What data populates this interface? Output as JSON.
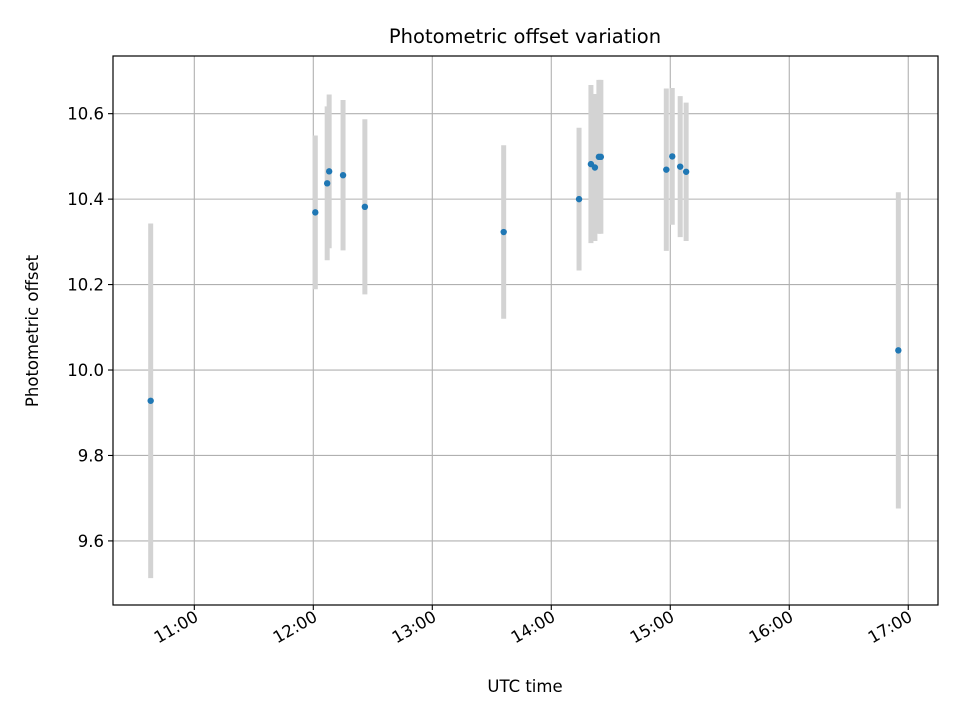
{
  "colors": {
    "background": "#ffffff",
    "grid": "#b0b0b0",
    "errorbar": "#d3d3d3",
    "marker": "#1f77b4",
    "axes": "#000000"
  },
  "chart_data": {
    "type": "scatter",
    "title": "Photometric offset variation",
    "xlabel": "UTC time",
    "ylabel": "Photometric offset",
    "grid": true,
    "xlim": [
      "10:19",
      "17:15"
    ],
    "ylim": [
      9.45,
      10.735
    ],
    "x_ticks": [
      "11:00",
      "12:00",
      "13:00",
      "14:00",
      "15:00",
      "16:00",
      "17:00"
    ],
    "y_ticks": [
      "9.6",
      "9.8",
      "10.0",
      "10.2",
      "10.4",
      "10.6"
    ],
    "series": [
      {
        "points": [
          {
            "x": "10:38",
            "y": 9.928,
            "err": 0.415
          },
          {
            "x": "12:01",
            "y": 10.369,
            "err": 0.18
          },
          {
            "x": "12:07",
            "y": 10.437,
            "err": 0.18
          },
          {
            "x": "12:08",
            "y": 10.465,
            "err": 0.18
          },
          {
            "x": "12:15",
            "y": 10.456,
            "err": 0.176
          },
          {
            "x": "12:26",
            "y": 10.382,
            "err": 0.205
          },
          {
            "x": "13:36",
            "y": 10.323,
            "err": 0.203
          },
          {
            "x": "14:14",
            "y": 10.4,
            "err": 0.167
          },
          {
            "x": "14:20",
            "y": 10.482,
            "err": 0.185
          },
          {
            "x": "14:22",
            "y": 10.474,
            "err": 0.172
          },
          {
            "x": "14:24",
            "y": 10.499,
            "err": 0.18
          },
          {
            "x": "14:25",
            "y": 10.499,
            "err": 0.18
          },
          {
            "x": "14:58",
            "y": 10.469,
            "err": 0.19
          },
          {
            "x": "15:01",
            "y": 10.5,
            "err": 0.16
          },
          {
            "x": "15:05",
            "y": 10.476,
            "err": 0.165
          },
          {
            "x": "15:08",
            "y": 10.464,
            "err": 0.162
          },
          {
            "x": "16:55",
            "y": 10.046,
            "err": 0.37
          }
        ]
      }
    ]
  }
}
